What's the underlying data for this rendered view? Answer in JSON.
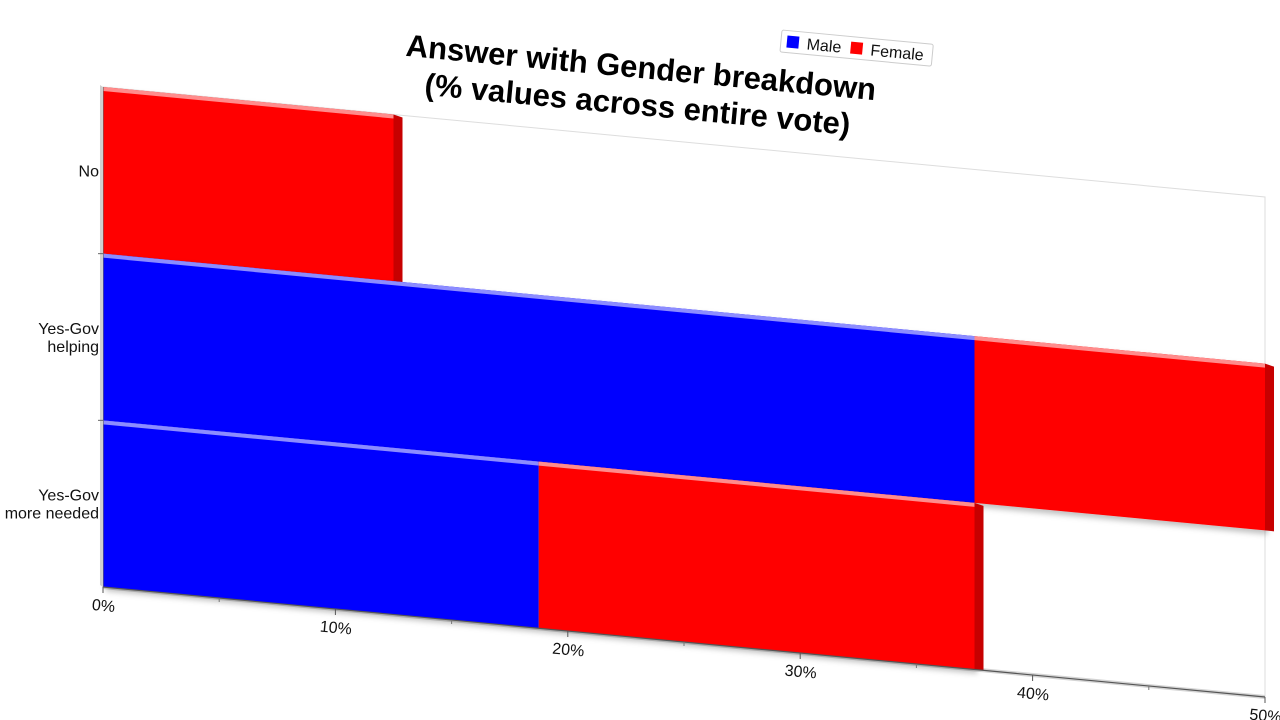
{
  "chart_data": {
    "type": "bar",
    "orientation": "horizontal",
    "stacked": true,
    "title_lines": [
      "Answer with Gender breakdown",
      "(% values across entire vote)"
    ],
    "categories": [
      "No",
      "Yes-Gov helping",
      "Yes-Gov more needed"
    ],
    "category_label_lines": [
      [
        "No"
      ],
      [
        "Yes-Gov",
        "helping"
      ],
      [
        "Yes-Gov",
        "more needed"
      ]
    ],
    "series": [
      {
        "name": "Male",
        "color": "#0000ff",
        "values": [
          0,
          37.5,
          18.75
        ]
      },
      {
        "name": "Female",
        "color": "#ff0000",
        "values": [
          12.5,
          12.5,
          18.75
        ]
      }
    ],
    "xlim": [
      0,
      50
    ],
    "x_ticks": [
      "0%",
      "10%",
      "20%",
      "30%",
      "40%",
      "50%"
    ],
    "xlabel": "",
    "ylabel": "",
    "legend_position": "top-right",
    "grid": false
  }
}
